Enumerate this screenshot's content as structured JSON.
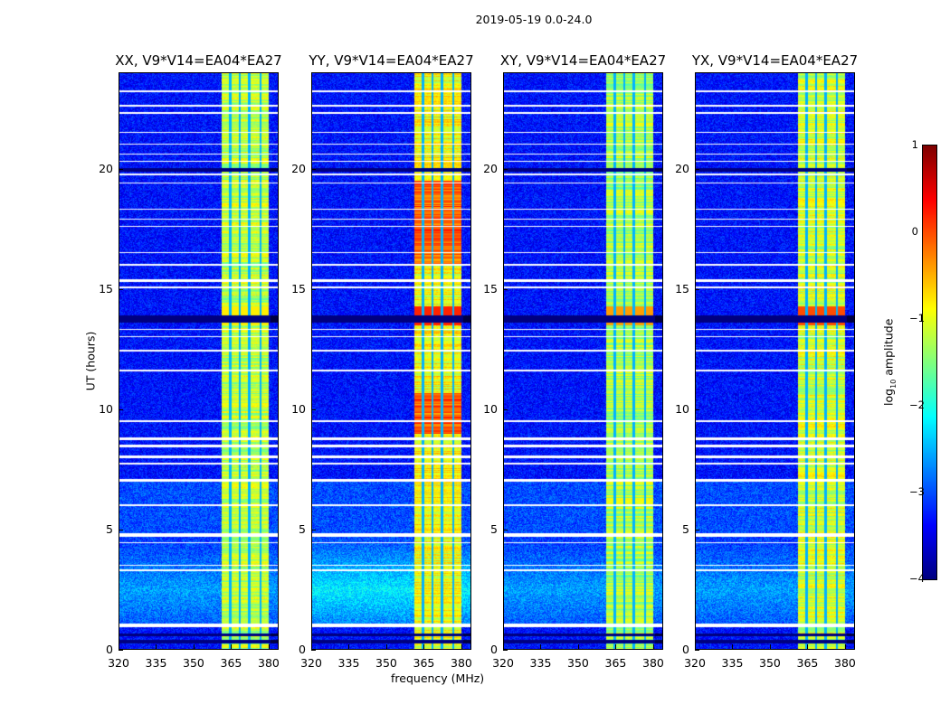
{
  "chart_data": {
    "type": "heatmap",
    "title": "2019-05-19 0.0-24.0",
    "xlabel": "frequency (MHz)",
    "ylabel": "UT (hours)",
    "xlim": [
      320,
      384
    ],
    "ylim": [
      0,
      24
    ],
    "xticks": [
      "320",
      "335",
      "350",
      "365",
      "380"
    ],
    "yticks": [
      "0",
      "5",
      "10",
      "15",
      "20"
    ],
    "colorbar": {
      "label": "log10 amplitude",
      "label_main": "log",
      "label_sub": "10",
      "label_rest": " amplitude",
      "range": [
        -4,
        1
      ],
      "ticks": [
        "1",
        "0",
        "−1",
        "−2",
        "−3",
        "−4"
      ],
      "colormap": "jet"
    },
    "rfi_band_mhz": [
      361,
      380
    ],
    "background_log_amp": -3.3,
    "flagged_hours": [
      [
        0.95,
        1.1
      ],
      [
        4.7,
        4.85
      ],
      [
        4.45,
        4.5
      ],
      [
        3.5,
        3.55
      ],
      [
        3.3,
        3.35
      ],
      [
        6.0,
        6.05
      ],
      [
        7.0,
        7.1
      ],
      [
        7.7,
        7.8
      ],
      [
        8.0,
        8.1
      ],
      [
        8.45,
        8.55
      ],
      [
        8.75,
        8.85
      ],
      [
        9.5,
        9.55
      ],
      [
        11.6,
        11.65
      ],
      [
        12.4,
        12.5
      ],
      [
        13.0,
        13.05
      ],
      [
        13.3,
        13.35
      ],
      [
        15.05,
        15.1
      ],
      [
        15.3,
        15.4
      ],
      [
        16.0,
        16.05
      ],
      [
        16.5,
        16.55
      ],
      [
        17.6,
        17.65
      ],
      [
        17.9,
        17.95
      ],
      [
        18.3,
        18.35
      ],
      [
        19.4,
        19.45
      ],
      [
        19.75,
        19.8
      ],
      [
        20.3,
        20.35
      ],
      [
        20.6,
        20.65
      ],
      [
        21.0,
        21.05
      ],
      [
        21.5,
        21.55
      ],
      [
        22.3,
        22.35
      ],
      [
        22.6,
        22.65
      ],
      [
        23.2,
        23.25
      ]
    ],
    "panels": [
      {
        "title": "XX, V9*V14=EA04*EA27",
        "band_log_amp": -1.2,
        "peak_log_amp": -0.8
      },
      {
        "title": "YY, V9*V14=EA04*EA27",
        "band_log_amp": -0.9,
        "peak_log_amp": 0.2
      },
      {
        "title": "XY, V9*V14=EA04*EA27",
        "band_log_amp": -1.3,
        "peak_log_amp": -0.4
      },
      {
        "title": "YX, V9*V14=EA04*EA27",
        "band_log_amp": -1.1,
        "peak_log_amp": 0.0
      }
    ]
  }
}
